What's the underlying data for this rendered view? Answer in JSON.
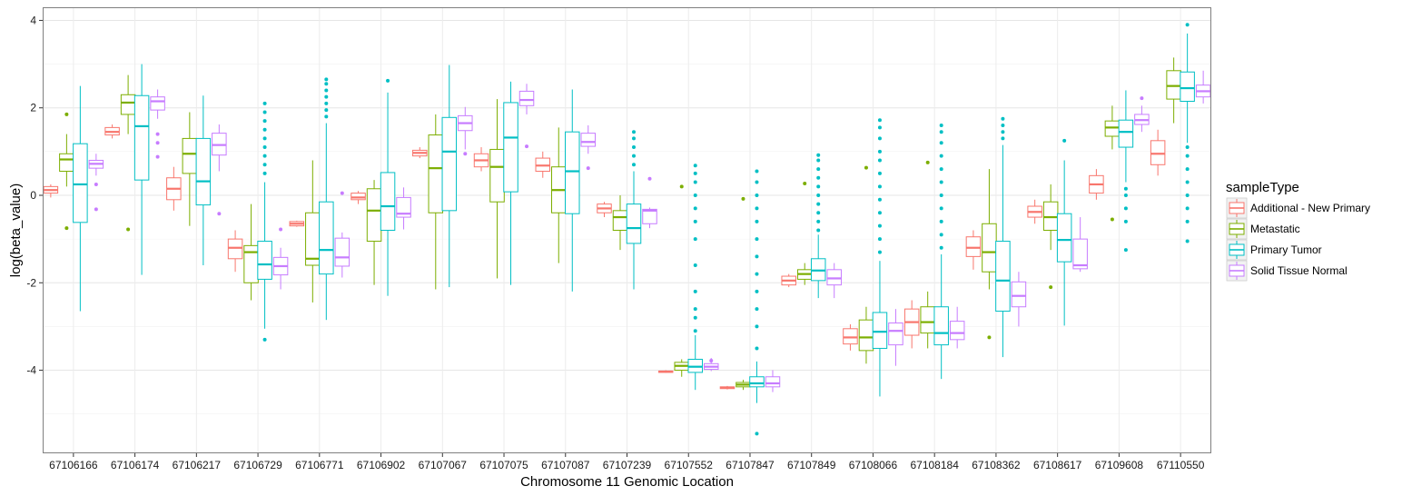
{
  "chart_data": {
    "type": "boxplot",
    "xlabel": "Chromosome 11 Genomic Location",
    "ylabel": "log(beta_value)",
    "ylim": [
      -5.9,
      4.3
    ],
    "y_ticks": [
      -4,
      -2,
      0,
      2,
      4
    ],
    "grid": true,
    "legend_position": "right",
    "legend_title": "sampleType",
    "categories": [
      "67106166",
      "67106174",
      "67106217",
      "67106729",
      "67106771",
      "67106902",
      "67107067",
      "67107075",
      "67107087",
      "67107239",
      "67107552",
      "67107847",
      "67107849",
      "67108066",
      "67108184",
      "67108362",
      "67108617",
      "67109608",
      "67110550"
    ],
    "series": [
      {
        "name": "Additional - New Primary",
        "color": "#F8766D",
        "boxes": [
          {
            "q1": 0.05,
            "median": 0.12,
            "q3": 0.2,
            "low": -0.05,
            "high": 0.25,
            "outliers": []
          },
          {
            "q1": 1.38,
            "median": 1.45,
            "q3": 1.55,
            "low": 1.3,
            "high": 1.62,
            "outliers": []
          },
          {
            "q1": -0.1,
            "median": 0.15,
            "q3": 0.4,
            "low": -0.35,
            "high": 0.65,
            "outliers": []
          },
          {
            "q1": -1.45,
            "median": -1.2,
            "q3": -1.0,
            "low": -1.75,
            "high": -0.8,
            "outliers": []
          },
          {
            "q1": -0.7,
            "median": -0.65,
            "q3": -0.6,
            "low": -0.72,
            "high": -0.58,
            "outliers": []
          },
          {
            "q1": -0.1,
            "median": -0.05,
            "q3": 0.05,
            "low": -0.2,
            "high": 0.1,
            "outliers": []
          },
          {
            "q1": 0.9,
            "median": 0.97,
            "q3": 1.03,
            "low": 0.85,
            "high": 1.1,
            "outliers": []
          },
          {
            "q1": 0.65,
            "median": 0.8,
            "q3": 0.95,
            "low": 0.55,
            "high": 1.1,
            "outliers": []
          },
          {
            "q1": 0.55,
            "median": 0.68,
            "q3": 0.85,
            "low": 0.4,
            "high": 1.0,
            "outliers": []
          },
          {
            "q1": -0.4,
            "median": -0.3,
            "q3": -0.2,
            "low": -0.5,
            "high": -0.15,
            "outliers": []
          },
          {
            "q1": -4.05,
            "median": -4.03,
            "q3": -4.02,
            "low": -4.06,
            "high": -4.0,
            "outliers": []
          },
          {
            "q1": -4.42,
            "median": -4.4,
            "q3": -4.38,
            "low": -4.44,
            "high": -4.36,
            "outliers": []
          },
          {
            "q1": -2.05,
            "median": -1.95,
            "q3": -1.85,
            "low": -2.1,
            "high": -1.8,
            "outliers": []
          },
          {
            "q1": -3.4,
            "median": -3.25,
            "q3": -3.05,
            "low": -3.55,
            "high": -2.95,
            "outliers": []
          },
          {
            "q1": -3.2,
            "median": -2.9,
            "q3": -2.6,
            "low": -3.5,
            "high": -2.4,
            "outliers": []
          },
          {
            "q1": -1.4,
            "median": -1.2,
            "q3": -0.95,
            "low": -1.7,
            "high": -0.8,
            "outliers": []
          },
          {
            "q1": -0.5,
            "median": -0.38,
            "q3": -0.25,
            "low": -0.65,
            "high": -0.1,
            "outliers": []
          },
          {
            "q1": 0.05,
            "median": 0.25,
            "q3": 0.45,
            "low": -0.1,
            "high": 0.6,
            "outliers": []
          },
          {
            "q1": 0.7,
            "median": 0.95,
            "q3": 1.25,
            "low": 0.45,
            "high": 1.5,
            "outliers": []
          }
        ]
      },
      {
        "name": "Metastatic",
        "color": "#7CAE00",
        "boxes": [
          {
            "q1": 0.55,
            "median": 0.82,
            "q3": 0.95,
            "low": 0.2,
            "high": 1.4,
            "outliers": [
              1.85,
              -0.75
            ]
          },
          {
            "q1": 1.85,
            "median": 2.12,
            "q3": 2.3,
            "low": 1.4,
            "high": 2.75,
            "outliers": [
              -0.78
            ]
          },
          {
            "q1": 0.5,
            "median": 0.95,
            "q3": 1.3,
            "low": -0.7,
            "high": 1.9,
            "outliers": []
          },
          {
            "q1": -2.0,
            "median": -1.3,
            "q3": -1.15,
            "low": -2.4,
            "high": -0.2,
            "outliers": []
          },
          {
            "q1": -1.6,
            "median": -1.45,
            "q3": -0.4,
            "low": -2.45,
            "high": 0.8,
            "outliers": []
          },
          {
            "q1": -1.05,
            "median": -0.35,
            "q3": 0.15,
            "low": -2.05,
            "high": 0.35,
            "outliers": []
          },
          {
            "q1": -0.4,
            "median": 0.62,
            "q3": 1.38,
            "low": -2.15,
            "high": 1.85,
            "outliers": []
          },
          {
            "q1": -0.15,
            "median": 0.65,
            "q3": 1.05,
            "low": -1.9,
            "high": 2.2,
            "outliers": []
          },
          {
            "q1": -0.4,
            "median": 0.12,
            "q3": 0.65,
            "low": -1.55,
            "high": 1.55,
            "outliers": []
          },
          {
            "q1": -0.8,
            "median": -0.5,
            "q3": -0.35,
            "low": -1.25,
            "high": 0.0,
            "outliers": []
          },
          {
            "q1": -4.0,
            "median": -3.9,
            "q3": -3.82,
            "low": -4.15,
            "high": -3.75,
            "outliers": [
              0.2
            ]
          },
          {
            "q1": -4.38,
            "median": -4.33,
            "q3": -4.28,
            "low": -4.45,
            "high": -4.22,
            "outliers": [
              -0.08
            ]
          },
          {
            "q1": -1.92,
            "median": -1.8,
            "q3": -1.7,
            "low": -2.05,
            "high": -1.55,
            "outliers": [
              0.27
            ]
          },
          {
            "q1": -3.55,
            "median": -3.25,
            "q3": -2.85,
            "low": -3.85,
            "high": -2.55,
            "outliers": [
              0.63
            ]
          },
          {
            "q1": -3.15,
            "median": -2.9,
            "q3": -2.55,
            "low": -3.5,
            "high": -2.2,
            "outliers": [
              0.75
            ]
          },
          {
            "q1": -1.75,
            "median": -1.3,
            "q3": -0.65,
            "low": -2.15,
            "high": 0.6,
            "outliers": [
              -3.25
            ]
          },
          {
            "q1": -0.8,
            "median": -0.5,
            "q3": -0.15,
            "low": -1.25,
            "high": 0.25,
            "outliers": [
              -2.1
            ]
          },
          {
            "q1": 1.35,
            "median": 1.55,
            "q3": 1.7,
            "low": 1.05,
            "high": 2.05,
            "outliers": [
              -0.55
            ]
          },
          {
            "q1": 2.2,
            "median": 2.5,
            "q3": 2.85,
            "low": 1.65,
            "high": 3.15,
            "outliers": []
          }
        ]
      },
      {
        "name": "Primary Tumor",
        "color": "#00BFC4",
        "boxes": [
          {
            "q1": -0.62,
            "median": 0.25,
            "q3": 1.18,
            "low": -2.65,
            "high": 2.5,
            "outliers": []
          },
          {
            "q1": 0.35,
            "median": 1.58,
            "q3": 2.28,
            "low": -1.82,
            "high": 3.0,
            "outliers": []
          },
          {
            "q1": -0.22,
            "median": 0.32,
            "q3": 1.3,
            "low": -1.6,
            "high": 2.28,
            "outliers": []
          },
          {
            "q1": -1.92,
            "median": -1.58,
            "q3": -1.05,
            "low": -3.05,
            "high": 0.3,
            "outliers": [
              -3.3,
              0.5,
              0.7,
              0.9,
              1.1,
              1.3,
              1.5,
              1.7,
              1.9,
              2.1
            ]
          },
          {
            "q1": -1.8,
            "median": -1.25,
            "q3": -0.15,
            "low": -2.85,
            "high": 1.65,
            "outliers": [
              1.8,
              1.95,
              2.1,
              2.25,
              2.4,
              2.55,
              2.65
            ]
          },
          {
            "q1": -0.8,
            "median": -0.25,
            "q3": 0.52,
            "low": -2.3,
            "high": 2.35,
            "outliers": [
              2.62
            ]
          },
          {
            "q1": -0.35,
            "median": 1.0,
            "q3": 1.78,
            "low": -2.1,
            "high": 2.98,
            "outliers": []
          },
          {
            "q1": 0.08,
            "median": 1.32,
            "q3": 2.12,
            "low": -2.05,
            "high": 2.6,
            "outliers": []
          },
          {
            "q1": -0.42,
            "median": 0.55,
            "q3": 1.45,
            "low": -2.2,
            "high": 2.42,
            "outliers": []
          },
          {
            "q1": -1.1,
            "median": -0.75,
            "q3": -0.2,
            "low": -2.15,
            "high": 0.55,
            "outliers": [
              0.7,
              0.9,
              1.1,
              1.3,
              1.45
            ]
          },
          {
            "q1": -4.05,
            "median": -3.92,
            "q3": -3.75,
            "low": -4.45,
            "high": -3.2,
            "outliers": [
              -3.1,
              -2.8,
              -2.6,
              -2.2,
              -1.6,
              -1.0,
              -0.6,
              -0.3,
              0.0,
              0.3,
              0.5,
              0.68
            ]
          },
          {
            "q1": -4.38,
            "median": -4.3,
            "q3": -4.15,
            "low": -4.75,
            "high": -3.8,
            "outliers": [
              -5.45,
              -3.5,
              -3.0,
              -2.6,
              -2.2,
              -1.8,
              -1.4,
              -1.0,
              -0.6,
              -0.3,
              0.0,
              0.3,
              0.55
            ]
          },
          {
            "q1": -1.95,
            "median": -1.72,
            "q3": -1.45,
            "low": -2.35,
            "high": -0.9,
            "outliers": [
              -0.8,
              -0.6,
              -0.4,
              -0.2,
              0.0,
              0.2,
              0.4,
              0.6,
              0.8,
              0.92
            ]
          },
          {
            "q1": -3.5,
            "median": -3.12,
            "q3": -2.68,
            "low": -4.6,
            "high": -1.5,
            "outliers": [
              -1.3,
              -1.0,
              -0.7,
              -0.4,
              -0.1,
              0.2,
              0.5,
              0.8,
              1.0,
              1.3,
              1.55,
              1.72
            ]
          },
          {
            "q1": -3.42,
            "median": -3.15,
            "q3": -2.55,
            "low": -4.2,
            "high": -1.35,
            "outliers": [
              -1.2,
              -0.9,
              -0.6,
              -0.3,
              0.0,
              0.3,
              0.6,
              0.9,
              1.2,
              1.45,
              1.6
            ]
          },
          {
            "q1": -2.65,
            "median": -1.95,
            "q3": -1.05,
            "low": -3.7,
            "high": 1.15,
            "outliers": [
              1.3,
              1.45,
              1.6,
              1.75
            ]
          },
          {
            "q1": -1.52,
            "median": -1.02,
            "q3": -0.42,
            "low": -2.98,
            "high": 0.8,
            "outliers": [
              1.25
            ]
          },
          {
            "q1": 1.1,
            "median": 1.45,
            "q3": 1.72,
            "low": 0.3,
            "high": 2.4,
            "outliers": [
              -1.25,
              -0.6,
              -0.3,
              0.0,
              0.15
            ]
          },
          {
            "q1": 2.15,
            "median": 2.45,
            "q3": 2.82,
            "low": 1.2,
            "high": 3.7,
            "outliers": [
              3.9,
              -1.05,
              -0.6,
              -0.3,
              0.0,
              0.3,
              0.6,
              0.9,
              1.1
            ]
          }
        ]
      },
      {
        "name": "Solid Tissue Normal",
        "color": "#C77CFF",
        "boxes": [
          {
            "q1": 0.62,
            "median": 0.72,
            "q3": 0.8,
            "low": 0.45,
            "high": 0.95,
            "outliers": [
              0.25,
              -0.32
            ]
          },
          {
            "q1": 1.95,
            "median": 2.15,
            "q3": 2.25,
            "low": 1.75,
            "high": 2.42,
            "outliers": [
              1.4,
              1.2,
              0.88
            ]
          },
          {
            "q1": 0.92,
            "median": 1.15,
            "q3": 1.42,
            "low": 0.55,
            "high": 1.62,
            "outliers": [
              -0.42
            ]
          },
          {
            "q1": -1.82,
            "median": -1.62,
            "q3": -1.42,
            "low": -2.15,
            "high": -1.2,
            "outliers": [
              -0.78
            ]
          },
          {
            "q1": -1.62,
            "median": -1.42,
            "q3": -0.98,
            "low": -1.88,
            "high": -0.85,
            "outliers": [
              0.05
            ]
          },
          {
            "q1": -0.5,
            "median": -0.42,
            "q3": -0.05,
            "low": -0.78,
            "high": 0.18,
            "outliers": []
          },
          {
            "q1": 1.48,
            "median": 1.65,
            "q3": 1.82,
            "low": 1.05,
            "high": 2.02,
            "outliers": [
              0.95
            ]
          },
          {
            "q1": 2.05,
            "median": 2.18,
            "q3": 2.38,
            "low": 1.85,
            "high": 2.55,
            "outliers": [
              1.12
            ]
          },
          {
            "q1": 1.12,
            "median": 1.22,
            "q3": 1.42,
            "low": 0.95,
            "high": 1.6,
            "outliers": [
              0.62
            ]
          },
          {
            "q1": -0.65,
            "median": -0.35,
            "q3": -0.32,
            "low": -0.75,
            "high": -0.28,
            "outliers": [
              0.38
            ]
          },
          {
            "q1": -3.98,
            "median": -3.92,
            "q3": -3.85,
            "low": -4.02,
            "high": -3.72,
            "outliers": [
              -3.78
            ]
          },
          {
            "q1": -4.38,
            "median": -4.3,
            "q3": -4.15,
            "low": -4.5,
            "high": -4.0,
            "outliers": []
          },
          {
            "q1": -2.05,
            "median": -1.9,
            "q3": -1.7,
            "low": -2.35,
            "high": -1.55,
            "outliers": []
          },
          {
            "q1": -3.42,
            "median": -3.1,
            "q3": -2.92,
            "low": -3.9,
            "high": -2.6,
            "outliers": []
          },
          {
            "q1": -3.3,
            "median": -3.15,
            "q3": -2.88,
            "low": -3.5,
            "high": -2.55,
            "outliers": []
          },
          {
            "q1": -2.55,
            "median": -2.3,
            "q3": -1.98,
            "low": -3.0,
            "high": -1.75,
            "outliers": []
          },
          {
            "q1": -1.68,
            "median": -1.6,
            "q3": -1.0,
            "low": -1.75,
            "high": -0.5,
            "outliers": []
          },
          {
            "q1": 1.62,
            "median": 1.72,
            "q3": 1.85,
            "low": 1.45,
            "high": 2.05,
            "outliers": [
              2.22
            ]
          },
          {
            "q1": 2.25,
            "median": 2.38,
            "q3": 2.52,
            "low": 2.1,
            "high": 2.85,
            "outliers": []
          }
        ]
      }
    ]
  }
}
